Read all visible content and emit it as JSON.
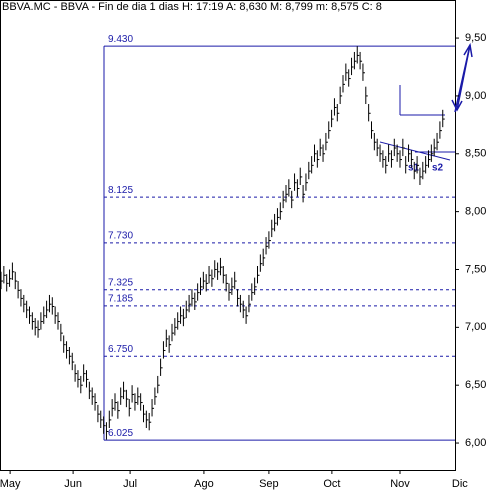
{
  "chart_data": {
    "type": "ohlc",
    "title": "BBVA.MC - BBVA - Fin de dia 1 dias H: 17:19 A: 8,630 M: 8,799 m: 8,575 C: 8",
    "high": [
      7.48,
      7.53,
      7.46,
      7.5,
      7.56,
      7.48,
      7.4,
      7.33,
      7.28,
      7.23,
      7.18,
      7.13,
      7.08,
      7.06,
      7.13,
      7.18,
      7.23,
      7.28,
      7.26,
      7.18,
      7.13,
      7.03,
      6.93,
      6.88,
      6.83,
      6.78,
      6.68,
      6.63,
      6.58,
      6.68,
      6.63,
      6.53,
      6.48,
      6.43,
      6.33,
      6.28,
      6.23,
      6.18,
      6.28,
      6.38,
      6.43,
      6.36,
      6.48,
      6.53,
      6.46,
      6.38,
      6.5,
      6.43,
      6.48,
      6.43,
      6.33,
      6.28,
      6.26,
      6.38,
      6.48,
      6.58,
      6.73,
      6.88,
      6.98,
      6.93,
      7.03,
      7.08,
      7.13,
      7.18,
      7.16,
      7.23,
      7.28,
      7.33,
      7.3,
      7.38,
      7.43,
      7.48,
      7.46,
      7.53,
      7.5,
      7.58,
      7.56,
      7.6,
      7.53,
      7.46,
      7.38,
      7.43,
      7.48,
      7.33,
      7.28,
      7.23,
      7.18,
      7.28,
      7.38,
      7.43,
      7.53,
      7.63,
      7.68,
      7.78,
      7.83,
      7.93,
      7.98,
      8.03,
      8.08,
      8.18,
      8.23,
      8.28,
      8.18,
      8.33,
      8.28,
      8.38,
      8.23,
      8.33,
      8.43,
      8.48,
      8.58,
      8.53,
      8.63,
      8.58,
      8.68,
      8.78,
      8.88,
      8.98,
      8.93,
      9.08,
      9.18,
      9.28,
      9.23,
      9.33,
      9.38,
      9.43,
      9.38,
      9.28,
      9.08,
      8.93,
      8.78,
      8.68,
      8.63,
      8.58,
      8.53,
      8.48,
      8.58,
      8.53,
      8.63,
      8.58,
      8.53,
      8.63,
      8.48,
      8.58,
      8.53,
      8.43,
      8.48,
      8.38,
      8.43,
      8.48,
      8.53,
      8.58,
      8.63,
      8.68,
      8.78,
      8.88
    ],
    "low": [
      7.33,
      7.38,
      7.31,
      7.35,
      7.41,
      7.33,
      7.25,
      7.18,
      7.13,
      7.08,
      7.03,
      6.98,
      6.93,
      6.91,
      6.98,
      7.03,
      7.08,
      7.13,
      7.11,
      7.03,
      6.98,
      6.88,
      6.78,
      6.73,
      6.68,
      6.63,
      6.53,
      6.48,
      6.43,
      6.53,
      6.48,
      6.38,
      6.33,
      6.28,
      6.18,
      6.13,
      6.08,
      6.03,
      6.13,
      6.23,
      6.28,
      6.21,
      6.33,
      6.38,
      6.31,
      6.23,
      6.35,
      6.28,
      6.33,
      6.28,
      6.18,
      6.13,
      6.11,
      6.23,
      6.33,
      6.43,
      6.58,
      6.73,
      6.83,
      6.78,
      6.88,
      6.93,
      6.98,
      7.03,
      7.01,
      7.08,
      7.13,
      7.18,
      7.15,
      7.23,
      7.28,
      7.33,
      7.31,
      7.38,
      7.35,
      7.43,
      7.41,
      7.45,
      7.38,
      7.31,
      7.23,
      7.28,
      7.33,
      7.18,
      7.13,
      7.08,
      7.03,
      7.13,
      7.23,
      7.28,
      7.38,
      7.48,
      7.53,
      7.63,
      7.68,
      7.78,
      7.83,
      7.88,
      7.93,
      8.03,
      8.08,
      8.13,
      8.03,
      8.18,
      8.13,
      8.23,
      8.08,
      8.18,
      8.28,
      8.33,
      8.43,
      8.38,
      8.48,
      8.43,
      8.53,
      8.63,
      8.73,
      8.83,
      8.78,
      8.93,
      9.03,
      9.13,
      9.08,
      9.18,
      9.23,
      9.28,
      9.23,
      9.13,
      8.93,
      8.78,
      8.63,
      8.53,
      8.48,
      8.43,
      8.38,
      8.33,
      8.43,
      8.38,
      8.48,
      8.43,
      8.38,
      8.48,
      8.33,
      8.43,
      8.38,
      8.28,
      8.33,
      8.23,
      8.28,
      8.33,
      8.38,
      8.43,
      8.48,
      8.53,
      8.63,
      8.73
    ],
    "close": [
      7.4,
      7.45,
      7.38,
      7.42,
      7.48,
      7.4,
      7.32,
      7.25,
      7.2,
      7.15,
      7.1,
      7.05,
      7.0,
      6.98,
      7.05,
      7.1,
      7.15,
      7.2,
      7.18,
      7.1,
      7.05,
      6.95,
      6.85,
      6.8,
      6.75,
      6.7,
      6.6,
      6.55,
      6.5,
      6.6,
      6.55,
      6.45,
      6.4,
      6.35,
      6.25,
      6.2,
      6.15,
      6.1,
      6.2,
      6.3,
      6.35,
      6.28,
      6.4,
      6.45,
      6.38,
      6.3,
      6.42,
      6.35,
      6.4,
      6.35,
      6.25,
      6.2,
      6.18,
      6.3,
      6.4,
      6.5,
      6.65,
      6.8,
      6.9,
      6.85,
      6.95,
      7.0,
      7.05,
      7.1,
      7.08,
      7.15,
      7.2,
      7.25,
      7.22,
      7.3,
      7.35,
      7.4,
      7.38,
      7.45,
      7.42,
      7.5,
      7.48,
      7.52,
      7.45,
      7.38,
      7.3,
      7.35,
      7.4,
      7.25,
      7.2,
      7.15,
      7.1,
      7.2,
      7.3,
      7.35,
      7.45,
      7.55,
      7.6,
      7.7,
      7.75,
      7.85,
      7.9,
      7.95,
      8.0,
      8.1,
      8.15,
      8.2,
      8.1,
      8.25,
      8.2,
      8.3,
      8.15,
      8.25,
      8.35,
      8.4,
      8.5,
      8.45,
      8.55,
      8.5,
      8.6,
      8.7,
      8.8,
      8.9,
      8.85,
      9.0,
      9.1,
      9.2,
      9.15,
      9.25,
      9.3,
      9.35,
      9.3,
      9.2,
      9.0,
      8.85,
      8.7,
      8.6,
      8.55,
      8.5,
      8.45,
      8.4,
      8.5,
      8.45,
      8.55,
      8.5,
      8.45,
      8.55,
      8.4,
      8.5,
      8.45,
      8.35,
      8.4,
      8.3,
      8.35,
      8.4,
      8.45,
      8.5,
      8.55,
      8.6,
      8.7,
      8.8
    ],
    "color": "#000000",
    "xlim": [
      0,
      159.3
    ],
    "xticks": [
      {
        "value": 3.2,
        "label": "May"
      },
      {
        "value": 25.3,
        "label": "Jun"
      },
      {
        "value": 45.3,
        "label": "Jul"
      },
      {
        "value": 71.2,
        "label": "Ago"
      },
      {
        "value": 94,
        "label": "Sep"
      },
      {
        "value": 116.1,
        "label": "Oct"
      },
      {
        "value": 140,
        "label": "Nov"
      },
      {
        "value": 161,
        "label": "Dic"
      }
    ],
    "ylim": [
      5.767,
      9.829
    ],
    "yticks": [
      {
        "value": 9.5,
        "label": "9,50"
      },
      {
        "value": 9,
        "label": "9,00"
      },
      {
        "value": 8.5,
        "label": "8,50"
      },
      {
        "value": 8,
        "label": "8,00"
      },
      {
        "value": 7.5,
        "label": "7,50"
      },
      {
        "value": 7,
        "label": "7,00"
      },
      {
        "value": 6.5,
        "label": "6,50"
      },
      {
        "value": 6,
        "label": "6,00"
      }
    ],
    "levels": [
      {
        "value": 9.43,
        "label": "9.430",
        "style": "solid"
      },
      {
        "value": 8.125,
        "label": "8.125",
        "style": "dashed"
      },
      {
        "value": 7.73,
        "label": "7.730",
        "style": "dashed"
      },
      {
        "value": 7.325,
        "label": "7.325",
        "style": "dashed"
      },
      {
        "value": 7.185,
        "label": "7.185",
        "style": "dashed"
      },
      {
        "value": 6.75,
        "label": "6.750",
        "style": "dashed"
      },
      {
        "value": 6.025,
        "label": "6.025",
        "style": "solid"
      }
    ],
    "level_color": "#1a1aa8",
    "annotations": [
      "s1",
      "s2"
    ]
  }
}
